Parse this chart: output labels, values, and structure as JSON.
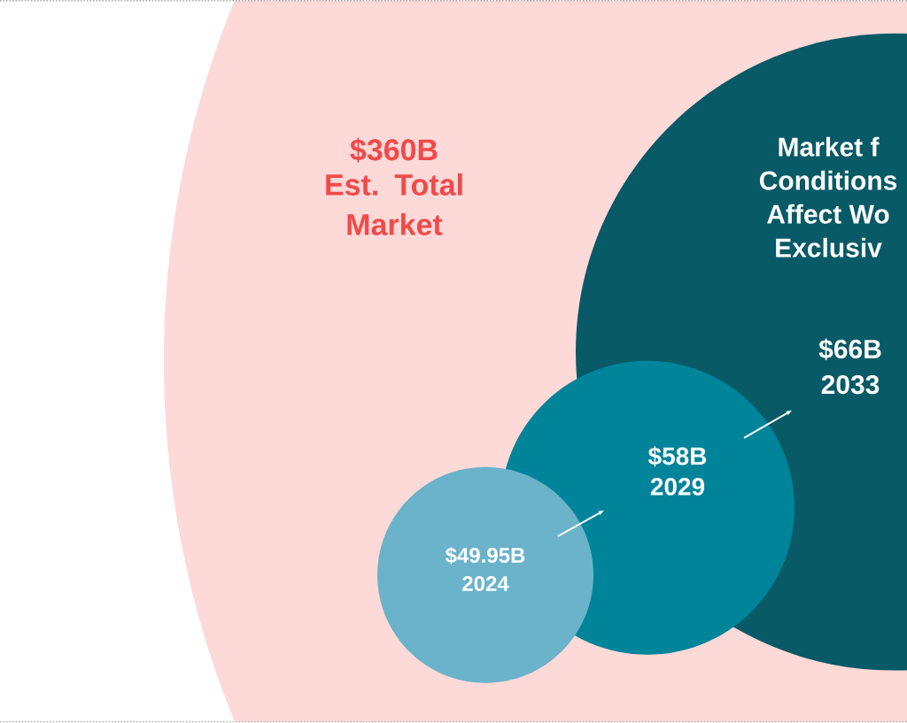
{
  "chart_data": {
    "type": "other",
    "categories": [
      "Est. Total Market",
      "2033",
      "2029",
      "2024"
    ],
    "values": [
      360,
      66,
      58,
      49.95
    ],
    "value_labels": [
      "$360B",
      "$66B",
      "$58B",
      "$49.95B"
    ],
    "colors": [
      "#fdd9d8",
      "#075a66",
      "#00849a",
      "#6ab3ca"
    ],
    "annotations": [
      "Market f",
      "Conditions",
      "Affect Wo",
      "Exclusiv"
    ]
  }
}
